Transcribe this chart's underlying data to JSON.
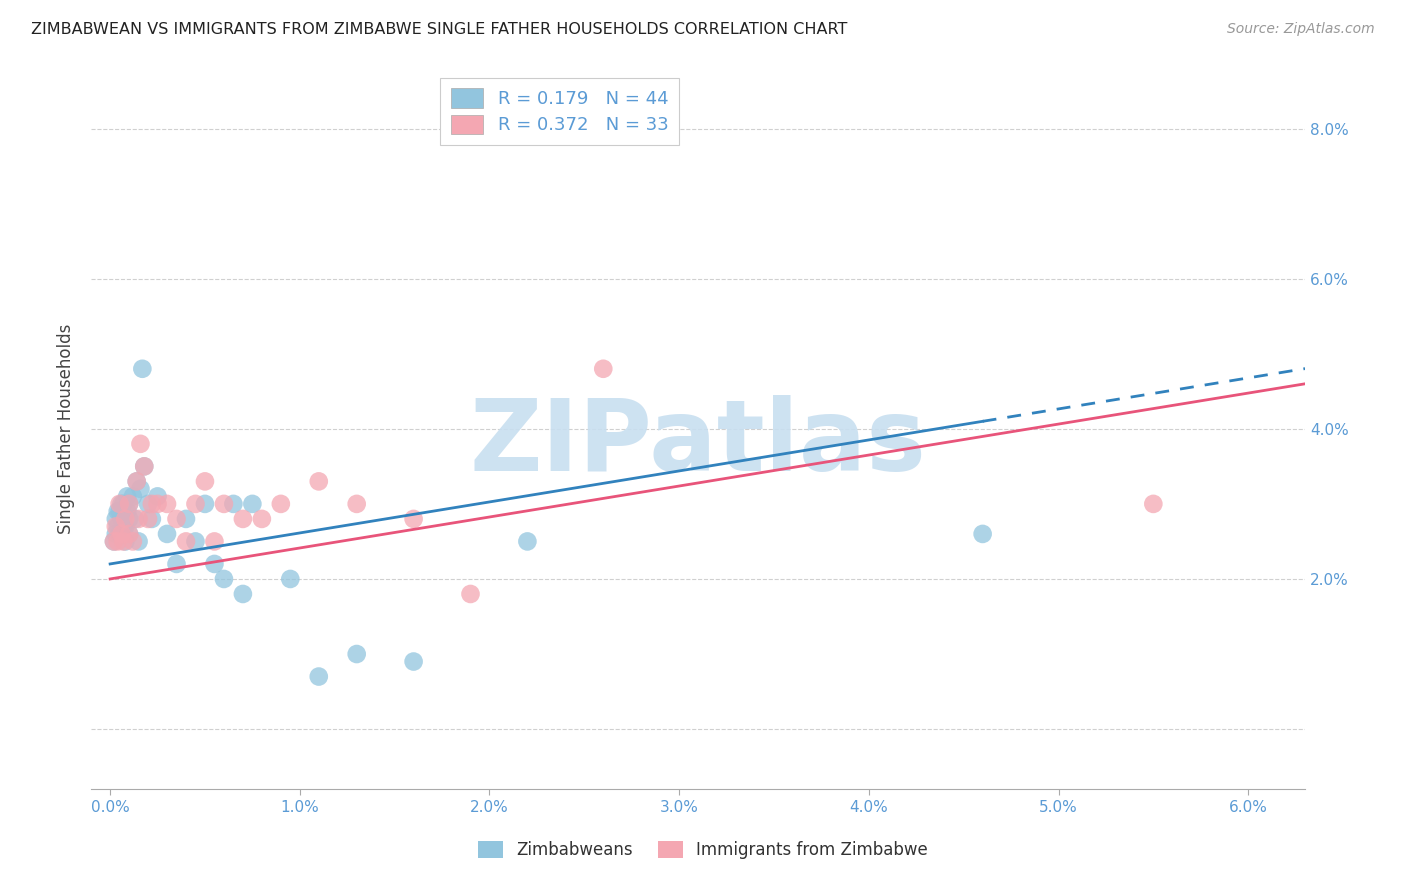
{
  "title": "ZIMBABWEAN VS IMMIGRANTS FROM ZIMBABWE SINGLE FATHER HOUSEHOLDS CORRELATION CHART",
  "source": "Source: ZipAtlas.com",
  "ylabel": "Single Father Households",
  "yticks": [
    0.0,
    0.02,
    0.04,
    0.06,
    0.08
  ],
  "ytick_labels": [
    "",
    "2.0%",
    "4.0%",
    "6.0%",
    "8.0%"
  ],
  "xticks": [
    0.0,
    0.01,
    0.02,
    0.03,
    0.04,
    0.05,
    0.06
  ],
  "xtick_labels": [
    "0.0%",
    "1.0%",
    "2.0%",
    "3.0%",
    "4.0%",
    "5.0%",
    "6.0%"
  ],
  "xlim": [
    -0.001,
    0.063
  ],
  "ylim": [
    -0.008,
    0.088
  ],
  "legend1_R": "0.179",
  "legend1_N": "44",
  "legend2_R": "0.372",
  "legend2_N": "33",
  "blue_color": "#92c5de",
  "pink_color": "#f4a7b2",
  "blue_line_color": "#3182bd",
  "pink_line_color": "#e8547a",
  "axis_color": "#5b9bd5",
  "grid_color": "#d0d0d0",
  "watermark_color": "#c8dff0",
  "blue_points_x": [
    0.0002,
    0.0003,
    0.0003,
    0.0004,
    0.0004,
    0.0005,
    0.0005,
    0.0006,
    0.0006,
    0.0007,
    0.0007,
    0.0008,
    0.0008,
    0.0009,
    0.0009,
    0.001,
    0.001,
    0.001,
    0.0012,
    0.0013,
    0.0014,
    0.0015,
    0.0016,
    0.0017,
    0.0018,
    0.002,
    0.0022,
    0.0025,
    0.003,
    0.0035,
    0.004,
    0.0045,
    0.005,
    0.0055,
    0.006,
    0.0065,
    0.007,
    0.0075,
    0.0095,
    0.011,
    0.013,
    0.016,
    0.022,
    0.046
  ],
  "blue_points_y": [
    0.025,
    0.026,
    0.028,
    0.027,
    0.029,
    0.026,
    0.029,
    0.028,
    0.03,
    0.027,
    0.03,
    0.025,
    0.027,
    0.029,
    0.031,
    0.026,
    0.028,
    0.03,
    0.031,
    0.028,
    0.033,
    0.025,
    0.032,
    0.048,
    0.035,
    0.03,
    0.028,
    0.031,
    0.026,
    0.022,
    0.028,
    0.025,
    0.03,
    0.022,
    0.02,
    0.03,
    0.018,
    0.03,
    0.02,
    0.007,
    0.01,
    0.009,
    0.025,
    0.026
  ],
  "pink_points_x": [
    0.0002,
    0.0003,
    0.0004,
    0.0005,
    0.0006,
    0.0007,
    0.0008,
    0.001,
    0.001,
    0.0012,
    0.0014,
    0.0015,
    0.0016,
    0.0018,
    0.002,
    0.0022,
    0.0025,
    0.003,
    0.0035,
    0.004,
    0.0045,
    0.005,
    0.0055,
    0.006,
    0.007,
    0.008,
    0.009,
    0.011,
    0.013,
    0.016,
    0.019,
    0.026,
    0.055
  ],
  "pink_points_y": [
    0.025,
    0.027,
    0.025,
    0.03,
    0.026,
    0.025,
    0.028,
    0.026,
    0.03,
    0.025,
    0.033,
    0.028,
    0.038,
    0.035,
    0.028,
    0.03,
    0.03,
    0.03,
    0.028,
    0.025,
    0.03,
    0.033,
    0.025,
    0.03,
    0.028,
    0.028,
    0.03,
    0.033,
    0.03,
    0.028,
    0.018,
    0.048,
    0.03
  ],
  "blue_line_start_x": 0.0,
  "blue_line_end_solid_x": 0.046,
  "blue_line_end_dash_x": 0.063,
  "blue_line_start_y": 0.022,
  "blue_line_end_y": 0.041,
  "pink_line_start_x": 0.0,
  "pink_line_end_x": 0.063,
  "pink_line_start_y": 0.02,
  "pink_line_end_y": 0.046
}
